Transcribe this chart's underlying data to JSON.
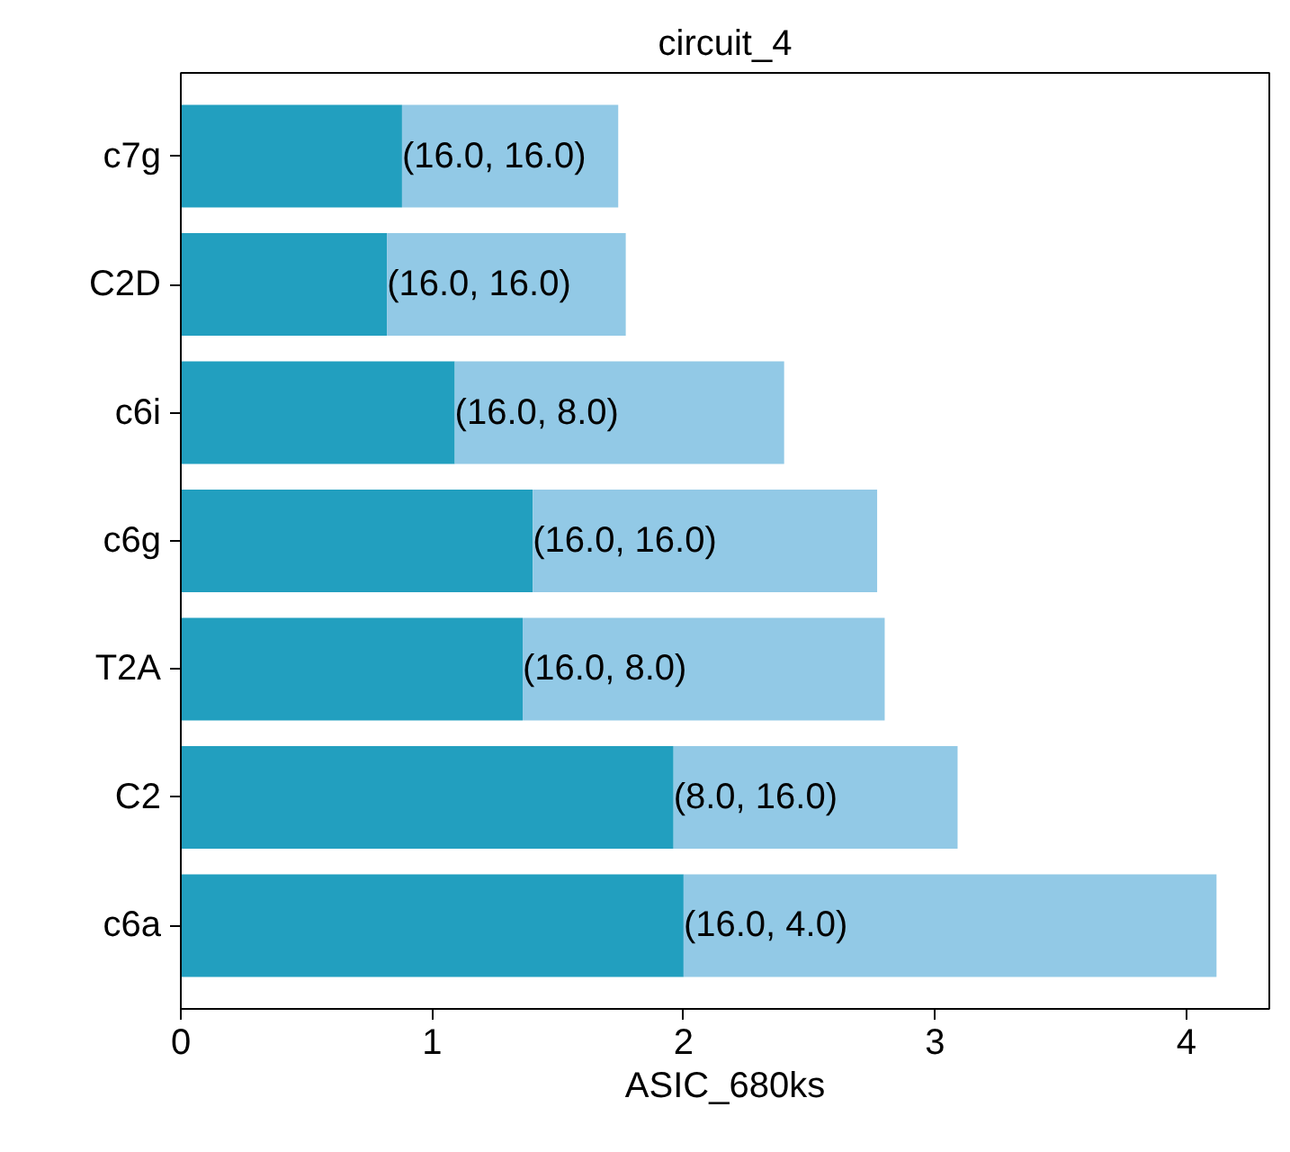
{
  "chart_data": {
    "type": "bar",
    "orientation": "horizontal",
    "stacked": true,
    "title": "circuit_4",
    "xlabel": "ASIC_680ks",
    "categories": [
      "c7g",
      "C2D",
      "c6i",
      "c6g",
      "T2A",
      "C2",
      "c6a"
    ],
    "series": [
      {
        "color": "#229fbf",
        "values": [
          0.88,
          0.82,
          1.09,
          1.4,
          1.36,
          1.96,
          2.0
        ],
        "value_labels": [
          "(16.0, 16.0)",
          "(16.0, 16.0)",
          "(16.0, 8.0)",
          "(16.0, 16.0)",
          "(16.0, 8.0)",
          "(8.0, 16.0)",
          "(16.0, 4.0)"
        ]
      },
      {
        "color": "#92c9e6",
        "values": [
          0.86,
          0.95,
          1.31,
          1.37,
          1.44,
          1.13,
          2.12
        ]
      }
    ],
    "xlim": [
      0,
      4.33
    ],
    "xticks": [
      0,
      1,
      2,
      3,
      4
    ],
    "grid": false
  }
}
